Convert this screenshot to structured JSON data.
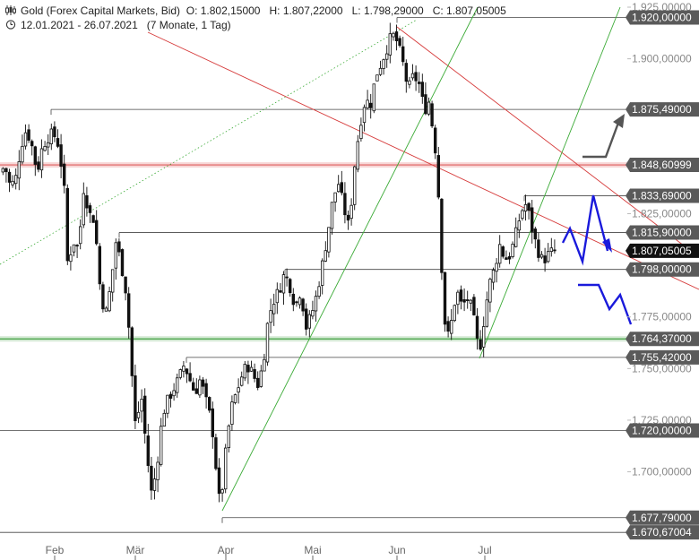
{
  "header": {
    "instrument": "Gold (Forex Capital Markets, Bid)",
    "open_label": "O:",
    "open": "1.802,15000",
    "high_label": "H:",
    "high": "1.807,22000",
    "low_label": "L:",
    "low": "1.798,29000",
    "close_label": "C:",
    "close": "1.807,05005",
    "range": "12.01.2021 - 26.07.2021",
    "period": "(7 Monate, 1 Tag)",
    "icons": [
      "candlestick-icon",
      "clock-icon"
    ]
  },
  "colors": {
    "background": "#ffffff",
    "candle": "#111111",
    "horizontal_line": "#444444",
    "support_band": "#3f9f3f",
    "resistance_band": "#e06060",
    "trend_red": "#d63a3a",
    "trend_green": "#3aaa35",
    "projection_blue": "#1a1adb",
    "projection_gray": "#555555",
    "label_dark": "#5a5a5a",
    "label_text_light": "#ffffff",
    "axis_text": "#888888"
  },
  "chart_data": {
    "type": "candlestick",
    "x_axis": {
      "range": [
        "2021-01-12",
        "2021-07-26"
      ],
      "month_labels": [
        "Feb",
        "Mär",
        "Apr",
        "Mai",
        "Jun",
        "Jul"
      ]
    },
    "y_axis": {
      "range": [
        1662.5,
        1925.0
      ],
      "position": "right",
      "tick_labels": [
        "1.925,00000",
        "1.900,00000",
        "1.825,00000",
        "1.775,00000",
        "1.750,00000",
        "1.725,00000",
        "1.700,00000"
      ],
      "tick_values": [
        1925,
        1900,
        1825,
        1775,
        1750,
        1725,
        1700
      ]
    },
    "horizontal_levels": [
      {
        "label": "1.920,00000",
        "value": 1920.0,
        "style": "line"
      },
      {
        "label": "1.875,49000",
        "value": 1875.49,
        "style": "line"
      },
      {
        "label": "1.848,60999",
        "value": 1848.61,
        "style": "resistance-band"
      },
      {
        "label": "1.833,69000",
        "value": 1833.69,
        "style": "line"
      },
      {
        "label": "1.815,90000",
        "value": 1815.9,
        "style": "line"
      },
      {
        "label": "1.807,05005",
        "value": 1807.05,
        "style": "current-price"
      },
      {
        "label": "1.798,00000",
        "value": 1798.0,
        "style": "line"
      },
      {
        "label": "1.764,37000",
        "value": 1764.37,
        "style": "support-band"
      },
      {
        "label": "1.755,42000",
        "value": 1755.42,
        "style": "line"
      },
      {
        "label": "1.720,00000",
        "value": 1720.0,
        "style": "line"
      },
      {
        "label": "1.677,79000",
        "value": 1677.79,
        "style": "line"
      },
      {
        "label": "1.670,67004",
        "value": 1670.67,
        "style": "line"
      }
    ],
    "last_close": 1807.05,
    "grid": false,
    "legend": "none"
  }
}
